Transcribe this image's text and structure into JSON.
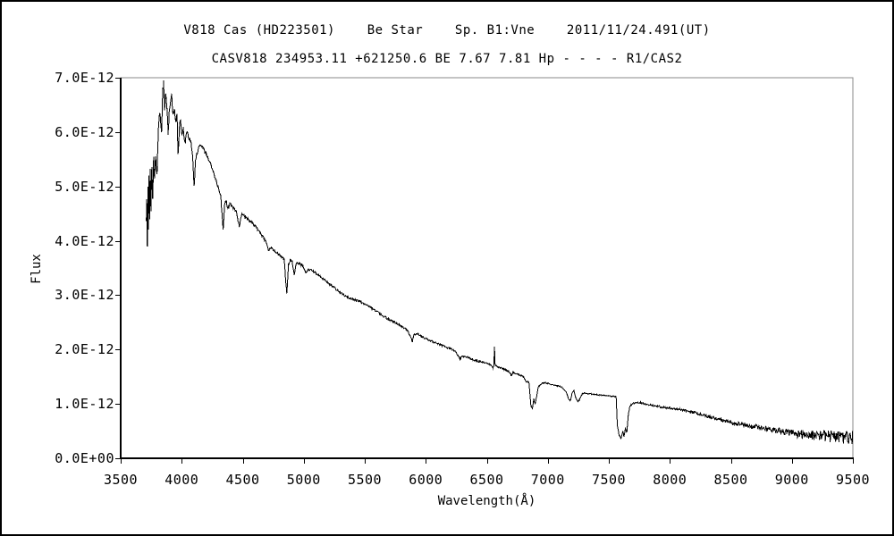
{
  "titles": {
    "line1": "V818 Cas (HD223501)    Be Star    Sp. B1:Vne    2011/11/24.491(UT)",
    "line2": "CASV818 234953.11 +621250.6 BE 7.67 7.81 Hp - - - - R1/CAS2"
  },
  "colors": {
    "line": "#000000",
    "axis": "#000000",
    "plot_frame": "#8a8a8a",
    "background": "#ffffff",
    "text": "#000000"
  },
  "chart_data": {
    "type": "line",
    "title": "V818 Cas (HD223501)  Be Star  Sp. B1:Vne  2011/11/24.491(UT)",
    "subtitle": "CASV818 234953.11 +621250.6 BE 7.67 7.81 Hp - - - - R1/CAS2",
    "xlabel": "Wavelength(Å)",
    "ylabel": "Flux",
    "grid": false,
    "legend": "none",
    "xlim": [
      3500,
      9500
    ],
    "ylim_e12": [
      0,
      7
    ],
    "flux_unit_scale": "1e-12",
    "x_ticks": [
      3500,
      4000,
      4500,
      5000,
      5500,
      6000,
      6500,
      7000,
      7500,
      8000,
      8500,
      9000,
      9500
    ],
    "x_tick_labels": [
      "3500",
      "4000",
      "4500",
      "5000",
      "5500",
      "6000",
      "6500",
      "7000",
      "7500",
      "8000",
      "8500",
      "9000",
      "9500"
    ],
    "y_ticks_e12": [
      0,
      1,
      2,
      3,
      4,
      5,
      6,
      7
    ],
    "y_tick_labels": [
      "0.0E+00",
      "1.0E-12",
      "2.0E-12",
      "3.0E-12",
      "4.0E-12",
      "5.0E-12",
      "6.0E-12",
      "7.0E-12"
    ],
    "data_start_wavelength": 3710,
    "data_end_wavelength": 9500,
    "sample_step": 4,
    "continuum_anchors_e12": [
      [
        3710,
        4.4
      ],
      [
        3714,
        4.78
      ],
      [
        3718,
        3.86
      ],
      [
        3723,
        5.0
      ],
      [
        3727,
        4.2
      ],
      [
        3732,
        5.22
      ],
      [
        3737,
        4.35
      ],
      [
        3742,
        5.3
      ],
      [
        3748,
        4.55
      ],
      [
        3755,
        5.4
      ],
      [
        3762,
        4.8
      ],
      [
        3770,
        5.5
      ],
      [
        3778,
        5.1
      ],
      [
        3786,
        5.6
      ],
      [
        3798,
        5.2
      ],
      [
        3808,
        6.05
      ],
      [
        3818,
        6.35
      ],
      [
        3828,
        6.2
      ],
      [
        3835,
        5.95
      ],
      [
        3843,
        6.7
      ],
      [
        3852,
        6.9
      ],
      [
        3860,
        6.45
      ],
      [
        3868,
        6.7
      ],
      [
        3880,
        6.4
      ],
      [
        3889,
        5.98
      ],
      [
        3900,
        6.45
      ],
      [
        3910,
        6.6
      ],
      [
        3917,
        6.75
      ],
      [
        3928,
        6.3
      ],
      [
        3940,
        6.42
      ],
      [
        3952,
        6.2
      ],
      [
        3962,
        6.3
      ],
      [
        3970,
        5.55
      ],
      [
        3982,
        6.15
      ],
      [
        3992,
        6.2
      ],
      [
        4002,
        5.92
      ],
      [
        4012,
        6.08
      ],
      [
        4026,
        5.8
      ],
      [
        4042,
        6.0
      ],
      [
        4058,
        5.9
      ],
      [
        4075,
        5.8
      ],
      [
        4090,
        5.55
      ],
      [
        4102,
        4.98
      ],
      [
        4114,
        5.52
      ],
      [
        4130,
        5.65
      ],
      [
        4150,
        5.75
      ],
      [
        4175,
        5.7
      ],
      [
        4200,
        5.6
      ],
      [
        4230,
        5.45
      ],
      [
        4260,
        5.25
      ],
      [
        4290,
        5.05
      ],
      [
        4320,
        4.8
      ],
      [
        4332,
        4.45
      ],
      [
        4340,
        4.18
      ],
      [
        4352,
        4.7
      ],
      [
        4365,
        4.72
      ],
      [
        4380,
        4.6
      ],
      [
        4395,
        4.68
      ],
      [
        4410,
        4.64
      ],
      [
        4430,
        4.58
      ],
      [
        4450,
        4.52
      ],
      [
        4471,
        4.26
      ],
      [
        4490,
        4.48
      ],
      [
        4510,
        4.46
      ],
      [
        4530,
        4.42
      ],
      [
        4560,
        4.36
      ],
      [
        4590,
        4.3
      ],
      [
        4620,
        4.22
      ],
      [
        4650,
        4.12
      ],
      [
        4680,
        4.02
      ],
      [
        4700,
        3.92
      ],
      [
        4713,
        3.82
      ],
      [
        4730,
        3.88
      ],
      [
        4760,
        3.82
      ],
      [
        4790,
        3.76
      ],
      [
        4820,
        3.7
      ],
      [
        4840,
        3.66
      ],
      [
        4848,
        3.4
      ],
      [
        4861,
        3.02
      ],
      [
        4875,
        3.55
      ],
      [
        4890,
        3.65
      ],
      [
        4905,
        3.62
      ],
      [
        4922,
        3.38
      ],
      [
        4940,
        3.6
      ],
      [
        4960,
        3.58
      ],
      [
        4990,
        3.55
      ],
      [
        5015,
        3.42
      ],
      [
        5040,
        3.48
      ],
      [
        5080,
        3.44
      ],
      [
        5120,
        3.37
      ],
      [
        5160,
        3.3
      ],
      [
        5200,
        3.22
      ],
      [
        5250,
        3.14
      ],
      [
        5300,
        3.05
      ],
      [
        5350,
        2.97
      ],
      [
        5400,
        2.93
      ],
      [
        5450,
        2.89
      ],
      [
        5500,
        2.84
      ],
      [
        5550,
        2.77
      ],
      [
        5600,
        2.7
      ],
      [
        5650,
        2.62
      ],
      [
        5700,
        2.55
      ],
      [
        5750,
        2.49
      ],
      [
        5800,
        2.43
      ],
      [
        5830,
        2.38
      ],
      [
        5850,
        2.35
      ],
      [
        5876,
        2.22
      ],
      [
        5890,
        2.15
      ],
      [
        5905,
        2.28
      ],
      [
        5930,
        2.3
      ],
      [
        5960,
        2.25
      ],
      [
        6000,
        2.2
      ],
      [
        6050,
        2.15
      ],
      [
        6100,
        2.1
      ],
      [
        6150,
        2.06
      ],
      [
        6200,
        2.02
      ],
      [
        6240,
        1.97
      ],
      [
        6280,
        1.83
      ],
      [
        6300,
        1.88
      ],
      [
        6340,
        1.86
      ],
      [
        6380,
        1.82
      ],
      [
        6420,
        1.79
      ],
      [
        6460,
        1.77
      ],
      [
        6500,
        1.75
      ],
      [
        6530,
        1.72
      ],
      [
        6548,
        1.66
      ],
      [
        6558,
        1.7
      ],
      [
        6563,
        2.05
      ],
      [
        6568,
        1.72
      ],
      [
        6590,
        1.68
      ],
      [
        6620,
        1.66
      ],
      [
        6650,
        1.63
      ],
      [
        6680,
        1.6
      ],
      [
        6700,
        1.52
      ],
      [
        6715,
        1.58
      ],
      [
        6740,
        1.56
      ],
      [
        6770,
        1.53
      ],
      [
        6800,
        1.5
      ],
      [
        6820,
        1.42
      ],
      [
        6845,
        1.4
      ],
      [
        6862,
        0.97
      ],
      [
        6875,
        0.92
      ],
      [
        6885,
        1.1
      ],
      [
        6895,
        1.0
      ],
      [
        6908,
        1.13
      ],
      [
        6920,
        1.3
      ],
      [
        6940,
        1.36
      ],
      [
        6970,
        1.39
      ],
      [
        7000,
        1.38
      ],
      [
        7030,
        1.36
      ],
      [
        7060,
        1.34
      ],
      [
        7090,
        1.33
      ],
      [
        7120,
        1.3
      ],
      [
        7150,
        1.22
      ],
      [
        7170,
        1.1
      ],
      [
        7185,
        1.06
      ],
      [
        7200,
        1.2
      ],
      [
        7215,
        1.24
      ],
      [
        7230,
        1.1
      ],
      [
        7245,
        1.05
      ],
      [
        7260,
        1.08
      ],
      [
        7280,
        1.18
      ],
      [
        7300,
        1.2
      ],
      [
        7330,
        1.19
      ],
      [
        7360,
        1.18
      ],
      [
        7400,
        1.17
      ],
      [
        7440,
        1.16
      ],
      [
        7480,
        1.15
      ],
      [
        7520,
        1.14
      ],
      [
        7560,
        1.13
      ],
      [
        7570,
        0.6
      ],
      [
        7585,
        0.42
      ],
      [
        7600,
        0.36
      ],
      [
        7615,
        0.5
      ],
      [
        7625,
        0.4
      ],
      [
        7635,
        0.55
      ],
      [
        7648,
        0.48
      ],
      [
        7660,
        0.8
      ],
      [
        7672,
        0.95
      ],
      [
        7690,
        1.0
      ],
      [
        7720,
        1.02
      ],
      [
        7760,
        1.02
      ],
      [
        7800,
        1.0
      ],
      [
        7840,
        0.98
      ],
      [
        7880,
        0.96
      ],
      [
        7920,
        0.95
      ],
      [
        7960,
        0.93
      ],
      [
        8000,
        0.92
      ],
      [
        8040,
        0.91
      ],
      [
        8080,
        0.9
      ],
      [
        8150,
        0.87
      ],
      [
        8200,
        0.84
      ],
      [
        8250,
        0.81
      ],
      [
        8300,
        0.78
      ],
      [
        8350,
        0.75
      ],
      [
        8400,
        0.72
      ],
      [
        8450,
        0.69
      ],
      [
        8500,
        0.66
      ],
      [
        8550,
        0.64
      ],
      [
        8600,
        0.62
      ],
      [
        8650,
        0.6
      ],
      [
        8700,
        0.58
      ],
      [
        8750,
        0.56
      ],
      [
        8800,
        0.54
      ],
      [
        8850,
        0.52
      ],
      [
        8900,
        0.5
      ],
      [
        8950,
        0.48
      ],
      [
        9000,
        0.46
      ],
      [
        9050,
        0.45
      ],
      [
        9100,
        0.44
      ],
      [
        9150,
        0.43
      ],
      [
        9200,
        0.42
      ],
      [
        9250,
        0.41
      ],
      [
        9300,
        0.4
      ],
      [
        9350,
        0.39
      ],
      [
        9400,
        0.38
      ],
      [
        9450,
        0.37
      ],
      [
        9500,
        0.36
      ]
    ],
    "noise_profile_e12": [
      [
        3710,
        0.05
      ],
      [
        3800,
        0.06
      ],
      [
        3950,
        0.05
      ],
      [
        4100,
        0.04
      ],
      [
        4400,
        0.03
      ],
      [
        5000,
        0.022
      ],
      [
        5600,
        0.02
      ],
      [
        6200,
        0.018
      ],
      [
        6600,
        0.015
      ],
      [
        7100,
        0.012
      ],
      [
        7600,
        0.012
      ],
      [
        8000,
        0.02
      ],
      [
        8400,
        0.03
      ],
      [
        8700,
        0.045
      ],
      [
        9000,
        0.065
      ],
      [
        9200,
        0.09
      ],
      [
        9350,
        0.12
      ],
      [
        9500,
        0.15
      ]
    ],
    "noise_seed": 12.9898
  }
}
